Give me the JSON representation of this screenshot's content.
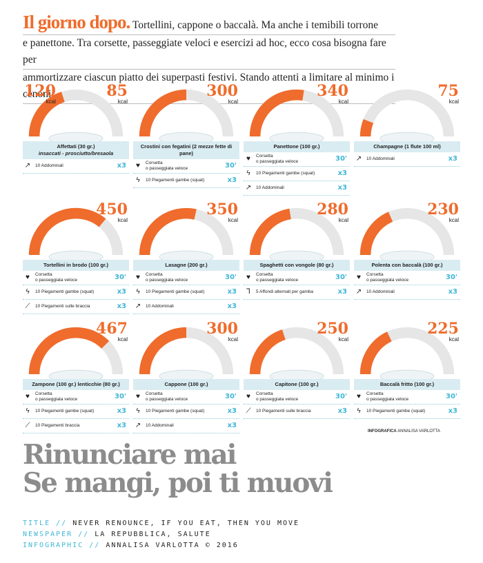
{
  "intro": {
    "lead": "Il giorno dopo.",
    "lines": [
      "Tortellini, cappone o baccalà. Ma anche i temibili torrone",
      "e panettone. Tra corsette, passeggiate veloci e esercizi ad hoc, ecco cosa bisogna fare per",
      "ammortizzare ciascun piatto dei superpasti festivi. Stando attenti a limitare al minimo i cenoni"
    ]
  },
  "colors": {
    "orange": "#ef6c2c",
    "cyan": "#3fb6d6",
    "panel": "#d9ecf2",
    "grey": "#8c8c8c"
  },
  "kcal_unit": "kcal",
  "cards": [
    {
      "kcal": [
        "120",
        "85"
      ],
      "fill": 0.4,
      "name": "Affettati (30 gr.)",
      "sub": "insaccati - prosciutto/bresaola",
      "acts": [
        {
          "icon": "situp-icon",
          "text": "10 Addominali",
          "amt": "x3"
        }
      ]
    },
    {
      "kcal": [
        "300"
      ],
      "fill": 0.5,
      "name": "Crostini con fegatini (2 mezze fette di pane)",
      "acts": [
        {
          "icon": "heart-icon",
          "text": "Corsetta\no passeggiata veloce",
          "amt": "30'"
        },
        {
          "icon": "squat-icon",
          "text": "10 Piegamenti gambe (squat)",
          "amt": "x3"
        }
      ]
    },
    {
      "kcal": [
        "340"
      ],
      "fill": 0.55,
      "name": "Panettone (100 gr.)",
      "acts": [
        {
          "icon": "heart-icon",
          "text": "Corsetta\no passeggiata veloce",
          "amt": "30'"
        },
        {
          "icon": "squat-icon",
          "text": "10 Piegamenti gambe (squat)",
          "amt": "x3"
        },
        {
          "icon": "situp-icon",
          "text": "10 Addominali",
          "amt": "x3"
        }
      ]
    },
    {
      "kcal": [
        "75"
      ],
      "fill": 0.12,
      "name": "Champagne (1 flute 100 ml)",
      "acts": [
        {
          "icon": "situp-icon",
          "text": "10 Addominali",
          "amt": "x3"
        }
      ]
    },
    {
      "kcal": [
        "450"
      ],
      "fill": 0.72,
      "name": "Tortellini in brodo (100 gr.)",
      "acts": [
        {
          "icon": "heart-icon",
          "text": "Corsetta\no passeggiata veloce",
          "amt": "30'"
        },
        {
          "icon": "squat-icon",
          "text": "10 Piegamenti gambe (squat)",
          "amt": "x3"
        },
        {
          "icon": "pushup-icon",
          "text": "10 Piegamenti sulle braccia",
          "amt": "x3"
        }
      ]
    },
    {
      "kcal": [
        "350"
      ],
      "fill": 0.57,
      "name": "Lasagne (200 gr.)",
      "acts": [
        {
          "icon": "heart-icon",
          "text": "Corsetta\no passeggiata veloce",
          "amt": "30'"
        },
        {
          "icon": "squat-icon",
          "text": "10 Piegamenti gambe (squat)",
          "amt": "x3"
        },
        {
          "icon": "situp-icon",
          "text": "10 Addominali",
          "amt": "x3"
        }
      ]
    },
    {
      "kcal": [
        "280"
      ],
      "fill": 0.45,
      "name": "Spaghetti con vongole (80 gr.)",
      "acts": [
        {
          "icon": "heart-icon",
          "text": "Corsetta\no passeggiata veloce",
          "amt": "30'"
        },
        {
          "icon": "lunge-icon",
          "text": "5 Affondi alternati per gamba",
          "amt": "x3"
        }
      ]
    },
    {
      "kcal": [
        "230"
      ],
      "fill": 0.37,
      "name": "Polenta con baccalà (100 gr.)",
      "acts": [
        {
          "icon": "heart-icon",
          "text": "Corsetta\no passeggiata veloce",
          "amt": "30'"
        },
        {
          "icon": "situp-icon",
          "text": "10 Addominali",
          "amt": "x3"
        }
      ]
    },
    {
      "kcal": [
        "467"
      ],
      "fill": 0.75,
      "name": "Zampone (100 gr.) lenticchie (80 gr.)",
      "acts": [
        {
          "icon": "heart-icon",
          "text": "Corsetta\no passeggiata veloce",
          "amt": "30'"
        },
        {
          "icon": "squat-icon",
          "text": "10 Piegamenti gambe (squat)",
          "amt": "x3"
        },
        {
          "icon": "pushup-icon",
          "text": "10 Piegamenti braccia",
          "amt": "x3"
        }
      ]
    },
    {
      "kcal": [
        "300"
      ],
      "fill": 0.5,
      "name": "Cappone (100 gr.)",
      "acts": [
        {
          "icon": "heart-icon",
          "text": "Corsetta\no passeggiata veloce",
          "amt": "30'"
        },
        {
          "icon": "squat-icon",
          "text": "10 Piegamenti gambe (squat)",
          "amt": "x3"
        },
        {
          "icon": "situp-icon",
          "text": "10 Addominali",
          "amt": "x3"
        }
      ]
    },
    {
      "kcal": [
        "250"
      ],
      "fill": 0.4,
      "name": "Capitone (100 gr.)",
      "acts": [
        {
          "icon": "heart-icon",
          "text": "Corsetta\no passeggiata veloce",
          "amt": "30'"
        },
        {
          "icon": "pushup-icon",
          "text": "10 Piegamenti sulle braccia",
          "amt": "x3"
        }
      ]
    },
    {
      "kcal": [
        "225"
      ],
      "fill": 0.36,
      "name": "Baccalà fritto (100 gr.)",
      "acts": [
        {
          "icon": "heart-icon",
          "text": "Corsetta\no passeggiata veloce",
          "amt": "30'"
        },
        {
          "icon": "squat-icon",
          "text": "10 Piegamenti gambe (squat)",
          "amt": "x3"
        }
      ]
    }
  ],
  "credit": {
    "label": "INFOGRAFICA",
    "name": "ANNALISA VARLOTTA"
  },
  "headline": [
    "Rinunciare mai",
    "Se mangi, poi ti muovi"
  ],
  "meta": [
    {
      "key": "TITLE //",
      "val": "NEVER RENOUNCE, IF YOU EAT, THEN YOU MOVE"
    },
    {
      "key": "NEWSPAPER //",
      "val": "LA REPUBBLICA, SALUTE"
    },
    {
      "key": "INFOGRAPHIC //",
      "val": "ANNALISA VARLOTTA © 2016"
    }
  ]
}
